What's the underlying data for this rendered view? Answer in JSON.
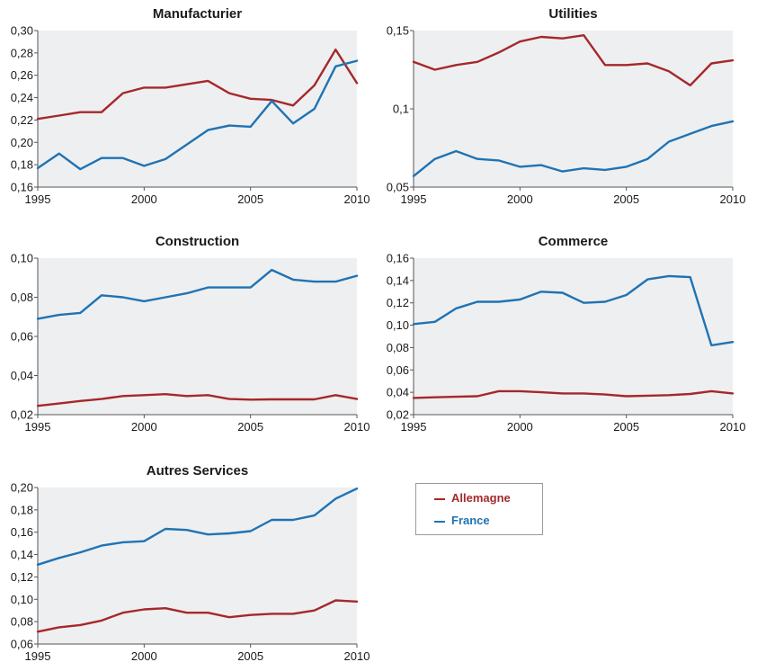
{
  "legend": {
    "allemagne": "Allemagne",
    "france": "France"
  },
  "colors": {
    "allemagne": "#a5282b",
    "france": "#1f73b4",
    "plot_bg": "#eeeff0",
    "axis": "#555555"
  },
  "chart_data": [
    {
      "type": "line",
      "title": "Manufacturier",
      "x": [
        1995,
        1996,
        1997,
        1998,
        1999,
        2000,
        2001,
        2002,
        2003,
        2004,
        2005,
        2006,
        2007,
        2008,
        2009,
        2010
      ],
      "xticks": [
        "1995",
        "2000",
        "2005",
        "2010"
      ],
      "ylim": [
        0.16,
        0.3
      ],
      "yticks": [
        "0,16",
        "0,18",
        "0,20",
        "0,22",
        "0,24",
        "0,26",
        "0,28",
        "0,30"
      ],
      "series": [
        {
          "name": "Allemagne",
          "values": [
            0.221,
            0.224,
            0.227,
            0.227,
            0.244,
            0.249,
            0.249,
            0.252,
            0.255,
            0.244,
            0.239,
            0.238,
            0.233,
            0.251,
            0.283,
            0.253
          ]
        },
        {
          "name": "France",
          "values": [
            0.177,
            0.19,
            0.176,
            0.186,
            0.186,
            0.179,
            0.185,
            0.198,
            0.211,
            0.215,
            0.214,
            0.237,
            0.217,
            0.23,
            0.268,
            0.273
          ]
        }
      ]
    },
    {
      "type": "line",
      "title": "Utilities",
      "x": [
        1995,
        1996,
        1997,
        1998,
        1999,
        2000,
        2001,
        2002,
        2003,
        2004,
        2005,
        2006,
        2007,
        2008,
        2009,
        2010
      ],
      "xticks": [
        "1995",
        "2000",
        "2005",
        "2010"
      ],
      "ylim": [
        0.05,
        0.15
      ],
      "yticks": [
        "0,05",
        "0,1",
        "0,15"
      ],
      "series": [
        {
          "name": "Allemagne",
          "values": [
            0.13,
            0.125,
            0.128,
            0.13,
            0.136,
            0.143,
            0.146,
            0.145,
            0.147,
            0.128,
            0.128,
            0.129,
            0.124,
            0.115,
            0.129,
            0.131
          ]
        },
        {
          "name": "France",
          "values": [
            0.057,
            0.068,
            0.073,
            0.068,
            0.067,
            0.063,
            0.064,
            0.06,
            0.062,
            0.061,
            0.063,
            0.068,
            0.079,
            0.084,
            0.089,
            0.092
          ]
        }
      ]
    },
    {
      "type": "line",
      "title": "Construction",
      "x": [
        1995,
        1996,
        1997,
        1998,
        1999,
        2000,
        2001,
        2002,
        2003,
        2004,
        2005,
        2006,
        2007,
        2008,
        2009,
        2010
      ],
      "xticks": [
        "1995",
        "2000",
        "2005",
        "2010"
      ],
      "ylim": [
        0.02,
        0.1
      ],
      "yticks": [
        "0,02",
        "0,04",
        "0,06",
        "0,08",
        "0,10"
      ],
      "series": [
        {
          "name": "Allemagne",
          "values": [
            0.0245,
            0.0257,
            0.027,
            0.028,
            0.0295,
            0.03,
            0.0305,
            0.0295,
            0.03,
            0.028,
            0.0277,
            0.0278,
            0.0278,
            0.0278,
            0.03,
            0.028
          ]
        },
        {
          "name": "France",
          "values": [
            0.069,
            0.071,
            0.072,
            0.081,
            0.08,
            0.078,
            0.08,
            0.082,
            0.085,
            0.085,
            0.085,
            0.094,
            0.089,
            0.088,
            0.088,
            0.091
          ]
        }
      ]
    },
    {
      "type": "line",
      "title": "Commerce",
      "x": [
        1995,
        1996,
        1997,
        1998,
        1999,
        2000,
        2001,
        2002,
        2003,
        2004,
        2005,
        2006,
        2007,
        2008,
        2009,
        2010
      ],
      "xticks": [
        "1995",
        "2000",
        "2005",
        "2010"
      ],
      "ylim": [
        0.02,
        0.16
      ],
      "yticks": [
        "0,02",
        "0,04",
        "0,06",
        "0,08",
        "0,10",
        "0,12",
        "0,14",
        "0,16"
      ],
      "series": [
        {
          "name": "Allemagne",
          "values": [
            0.035,
            0.0355,
            0.036,
            0.0365,
            0.041,
            0.041,
            0.04,
            0.039,
            0.039,
            0.038,
            0.0365,
            0.037,
            0.0375,
            0.0385,
            0.041,
            0.039
          ]
        },
        {
          "name": "France",
          "values": [
            0.101,
            0.103,
            0.115,
            0.121,
            0.121,
            0.123,
            0.13,
            0.129,
            0.12,
            0.121,
            0.127,
            0.141,
            0.144,
            0.143,
            0.082,
            0.085
          ]
        }
      ]
    },
    {
      "type": "line",
      "title": "Autres Services",
      "x": [
        1995,
        1996,
        1997,
        1998,
        1999,
        2000,
        2001,
        2002,
        2003,
        2004,
        2005,
        2006,
        2007,
        2008,
        2009,
        2010
      ],
      "xticks": [
        "1995",
        "2000",
        "2005",
        "2010"
      ],
      "ylim": [
        0.06,
        0.2
      ],
      "yticks": [
        "0,06",
        "0,08",
        "0,10",
        "0,12",
        "0,14",
        "0,16",
        "0,18",
        "0,20"
      ],
      "series": [
        {
          "name": "Allemagne",
          "values": [
            0.071,
            0.075,
            0.077,
            0.081,
            0.088,
            0.091,
            0.092,
            0.088,
            0.088,
            0.084,
            0.086,
            0.087,
            0.087,
            0.09,
            0.099,
            0.098
          ]
        },
        {
          "name": "France",
          "values": [
            0.131,
            0.137,
            0.142,
            0.148,
            0.151,
            0.152,
            0.163,
            0.162,
            0.158,
            0.159,
            0.161,
            0.171,
            0.171,
            0.175,
            0.19,
            0.199
          ]
        }
      ]
    }
  ]
}
